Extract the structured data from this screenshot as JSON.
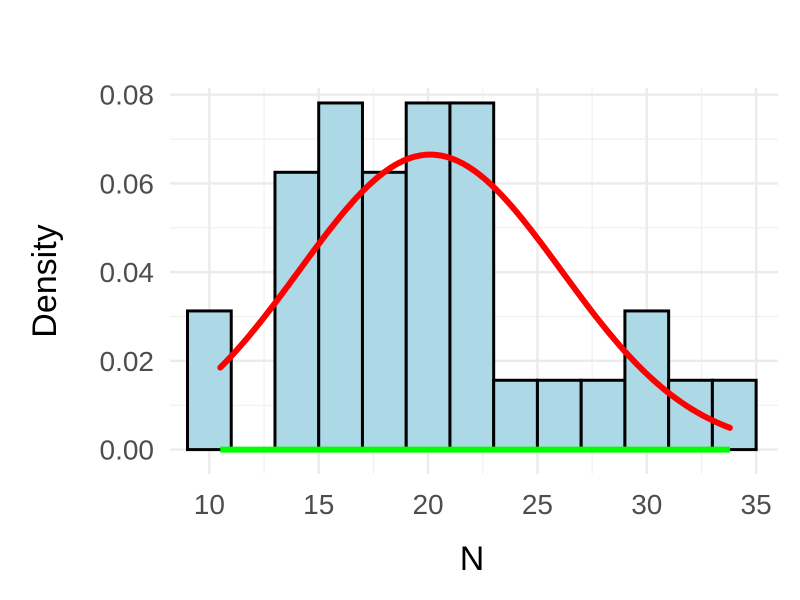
{
  "chart_data": {
    "type": "bar",
    "title": "",
    "xlabel": "N",
    "ylabel": "Density",
    "xlim": [
      8.2,
      36.0
    ],
    "ylim": [
      -0.0055,
      0.0815
    ],
    "x_ticks": [
      10,
      15,
      20,
      25,
      30,
      35
    ],
    "x_tick_labels": [
      "10",
      "15",
      "20",
      "25",
      "30",
      "35"
    ],
    "x_minor_ticks": [
      12.5,
      17.5,
      22.5,
      27.5,
      32.5
    ],
    "y_ticks": [
      0.0,
      0.02,
      0.04,
      0.06,
      0.08
    ],
    "y_tick_labels": [
      "0.00",
      "0.02",
      "0.04",
      "0.06",
      "0.08"
    ],
    "y_minor_ticks": [
      0.01,
      0.03,
      0.05,
      0.07
    ],
    "grid": true,
    "histogram": {
      "bin_width": 2,
      "fill_color": "#add8e6",
      "edge_color": "#000000",
      "bins": [
        {
          "x0": 9,
          "x1": 11,
          "density": 0.03125
        },
        {
          "x0": 11,
          "x1": 13,
          "density": 0.0
        },
        {
          "x0": 13,
          "x1": 15,
          "density": 0.0625
        },
        {
          "x0": 15,
          "x1": 17,
          "density": 0.078125
        },
        {
          "x0": 17,
          "x1": 19,
          "density": 0.0625
        },
        {
          "x0": 19,
          "x1": 21,
          "density": 0.078125
        },
        {
          "x0": 21,
          "x1": 23,
          "density": 0.078125
        },
        {
          "x0": 23,
          "x1": 25,
          "density": 0.015625
        },
        {
          "x0": 25,
          "x1": 27,
          "density": 0.015625
        },
        {
          "x0": 27,
          "x1": 29,
          "density": 0.015625
        },
        {
          "x0": 29,
          "x1": 31,
          "density": 0.03125
        },
        {
          "x0": 31,
          "x1": 33,
          "density": 0.015625
        },
        {
          "x0": 33,
          "x1": 35,
          "density": 0.015625
        }
      ]
    },
    "density_curve": {
      "type": "normal",
      "color": "#ff0000",
      "mean": 20.1,
      "sd": 6.0,
      "x_range": [
        10.5,
        33.8
      ]
    },
    "baseline_segment": {
      "color": "#00ff00",
      "y": 0.0,
      "x_range": [
        10.5,
        33.8
      ]
    }
  }
}
